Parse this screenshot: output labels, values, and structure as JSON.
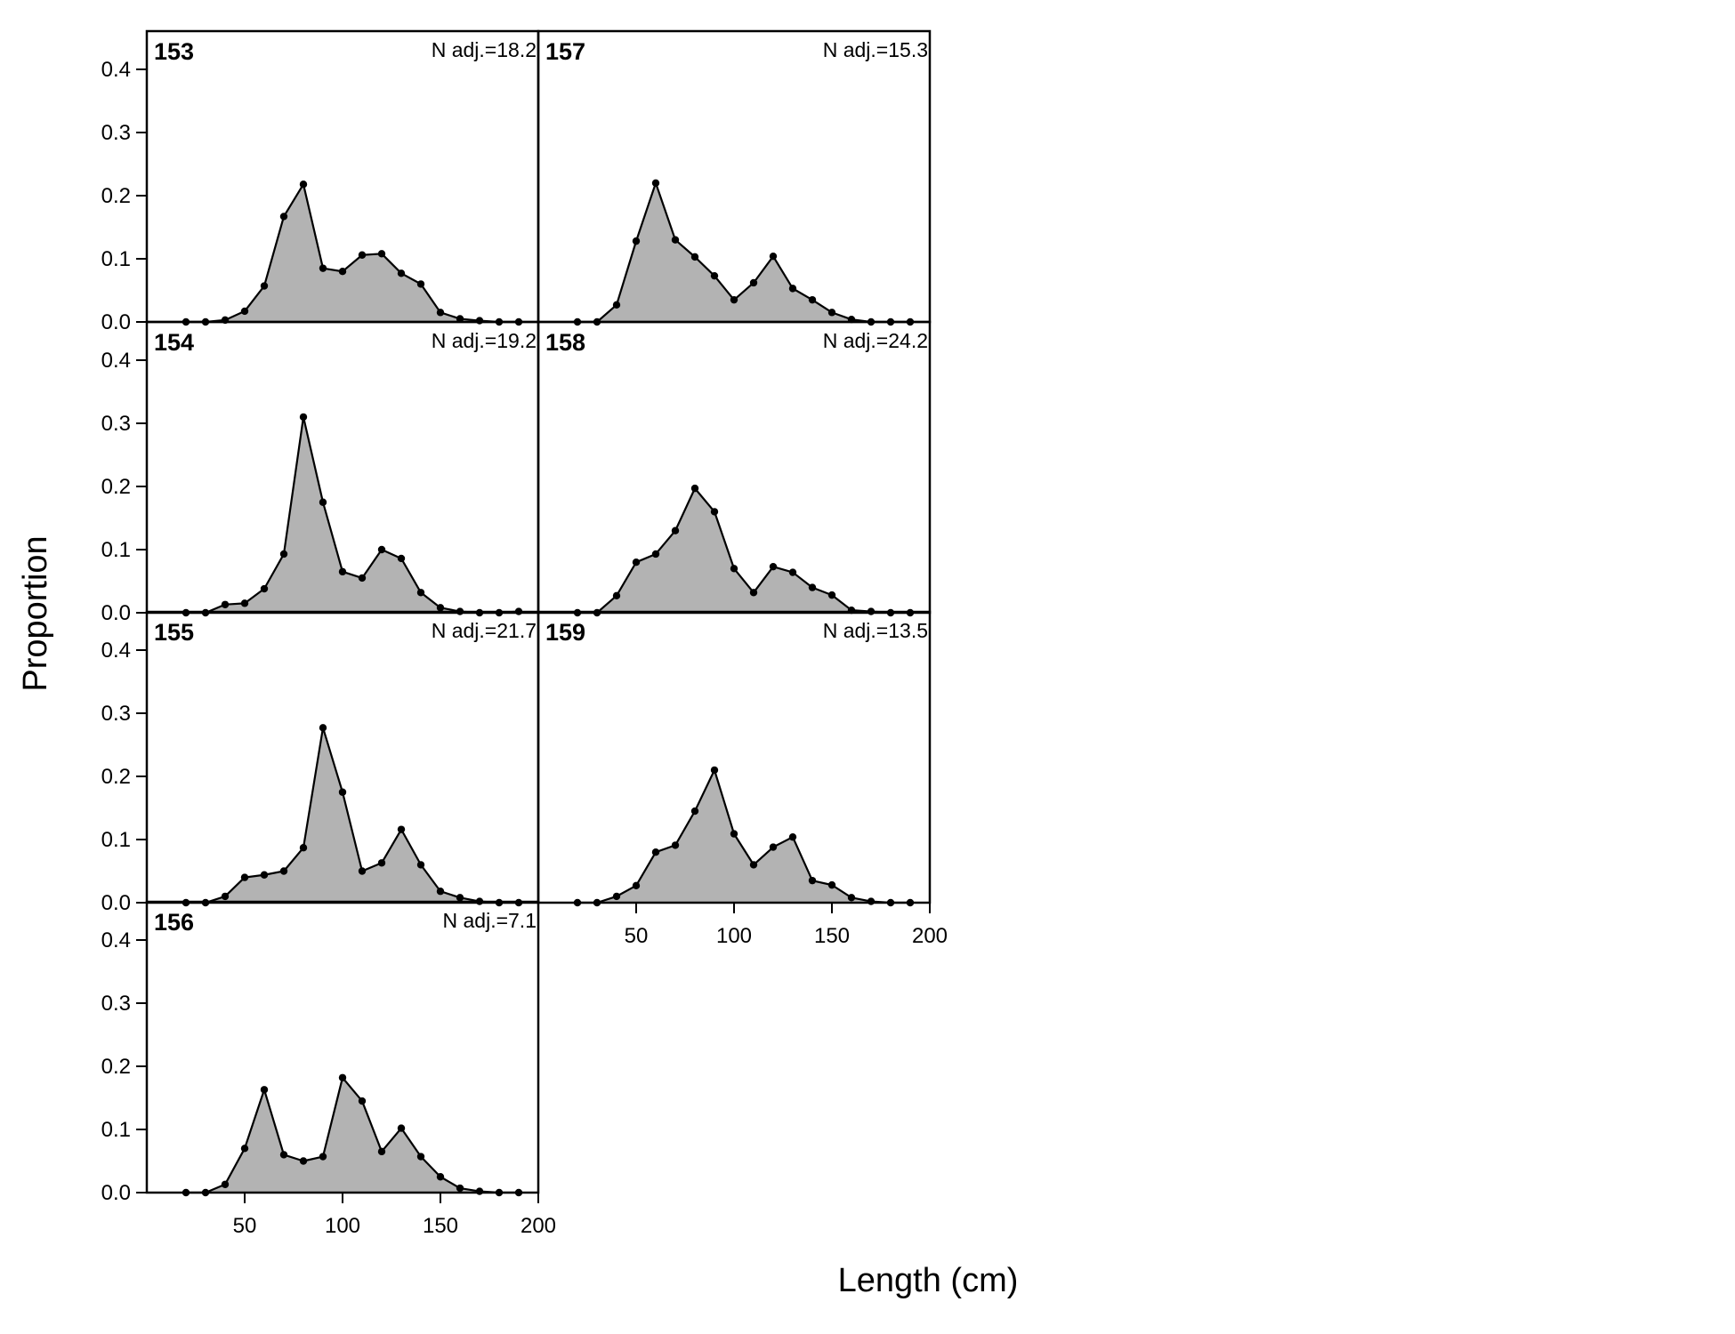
{
  "chart_data": {
    "type": "area",
    "xlabel": "Length (cm)",
    "ylabel": "Proportion",
    "xlim": [
      0,
      200
    ],
    "ylim": [
      0,
      0.45
    ],
    "x_ticks": [
      50,
      100,
      150,
      200
    ],
    "y_ticks": [
      0.0,
      0.1,
      0.2,
      0.3,
      0.4
    ],
    "y_tick_labels": [
      "0.0",
      "0.1",
      "0.2",
      "0.3",
      "0.4"
    ],
    "fill_color": "#b3b3b3",
    "line_color": "#000000",
    "x": [
      20,
      30,
      40,
      50,
      60,
      70,
      80,
      90,
      100,
      110,
      120,
      130,
      140,
      150,
      160,
      170,
      180,
      190
    ],
    "panels": [
      {
        "id": "153",
        "n_label": "N adj.=18.2",
        "values": [
          0.0,
          0.0,
          0.003,
          0.017,
          0.057,
          0.167,
          0.218,
          0.085,
          0.08,
          0.106,
          0.108,
          0.077,
          0.06,
          0.015,
          0.005,
          0.002,
          0.0,
          0.0
        ]
      },
      {
        "id": "154",
        "n_label": "N adj.=19.2",
        "values": [
          0.0,
          0.0,
          0.013,
          0.015,
          0.038,
          0.093,
          0.31,
          0.175,
          0.065,
          0.055,
          0.1,
          0.086,
          0.032,
          0.008,
          0.002,
          0.0,
          0.0,
          0.002
        ]
      },
      {
        "id": "155",
        "n_label": "N adj.=21.7",
        "values": [
          0.0,
          0.0,
          0.01,
          0.04,
          0.044,
          0.05,
          0.087,
          0.277,
          0.175,
          0.05,
          0.063,
          0.116,
          0.06,
          0.018,
          0.008,
          0.002,
          0.0,
          0.0
        ]
      },
      {
        "id": "156",
        "n_label": "N adj.=7.1",
        "values": [
          0.0,
          0.0,
          0.013,
          0.07,
          0.163,
          0.06,
          0.05,
          0.057,
          0.182,
          0.145,
          0.065,
          0.102,
          0.057,
          0.025,
          0.007,
          0.002,
          0.0,
          0.0
        ]
      },
      {
        "id": "157",
        "n_label": "N adj.=15.3",
        "values": [
          0.0,
          0.0,
          0.027,
          0.128,
          0.22,
          0.13,
          0.103,
          0.073,
          0.035,
          0.062,
          0.104,
          0.053,
          0.035,
          0.015,
          0.004,
          0.0,
          0.0,
          0.0
        ]
      },
      {
        "id": "158",
        "n_label": "N adj.=24.2",
        "values": [
          0.0,
          0.0,
          0.027,
          0.08,
          0.093,
          0.13,
          0.197,
          0.16,
          0.07,
          0.032,
          0.073,
          0.064,
          0.04,
          0.028,
          0.004,
          0.002,
          0.0,
          0.0
        ]
      },
      {
        "id": "159",
        "n_label": "N adj.=13.5",
        "values": [
          0.0,
          0.0,
          0.01,
          0.027,
          0.08,
          0.091,
          0.145,
          0.21,
          0.109,
          0.06,
          0.088,
          0.104,
          0.035,
          0.028,
          0.008,
          0.002,
          0.0,
          0.0
        ]
      }
    ]
  }
}
